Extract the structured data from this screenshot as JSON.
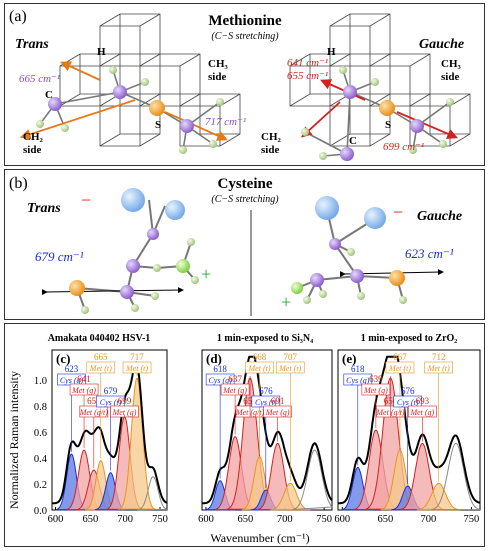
{
  "panel_a": {
    "label": "(a)",
    "title": "Methionine",
    "subtitle": "(C−S stretching)",
    "trans": {
      "label": "Trans",
      "freq": "665 cm⁻¹",
      "freq2": "717 cm⁻¹",
      "atom_h": "H",
      "atom_c": "C",
      "atom_s": "S",
      "ch3": "CH₃",
      "ch3_side": "side",
      "ch2": "CH₂",
      "ch2_side": "side"
    },
    "gauche": {
      "label": "Gauche",
      "freq1": "641 cm⁻¹",
      "freq2": "655 cm⁻¹",
      "freq3": "699 cm⁻¹",
      "atom_h": "H",
      "atom_c": "C",
      "atom_s": "S",
      "ch3": "CH₃",
      "ch3_side": "side",
      "ch2": "CH₂",
      "ch2_side": "side"
    }
  },
  "panel_b": {
    "label": "(b)",
    "title": "Cysteine",
    "subtitle": "(C−S stretching)",
    "trans": {
      "label": "Trans",
      "freq": "679 cm⁻¹",
      "minus": "−",
      "plus": "+"
    },
    "gauche": {
      "label": "Gauche",
      "freq": "623 cm⁻¹",
      "minus": "−",
      "plus": "+"
    }
  },
  "panel_c": {
    "ylabel": "Normalized Raman intensity",
    "xlabel": "Wavenumber (cm⁻¹)",
    "yticks": [
      "0.0",
      "0.2",
      "0.4",
      "0.6",
      "0.8",
      "1.0"
    ],
    "colors": {
      "red": "#d81f1f",
      "blue": "#1a2fd6",
      "orange": "#e8961e",
      "black": "#000000",
      "gray": "#8a8a8a"
    }
  },
  "chart_data": [
    {
      "type": "line",
      "panel_label": "(c)",
      "title": "Amakata 040402 HSV-1",
      "xlabel": "Wavenumber (cm⁻¹)",
      "ylabel": "Normalized Raman intensity",
      "xlim": [
        595,
        760
      ],
      "ylim": [
        0,
        1.2
      ],
      "xticks": [
        600,
        650,
        700,
        750
      ],
      "peaks": [
        {
          "position": 623,
          "amplitude": 0.42,
          "width": 7,
          "assignment": "Cys (g)",
          "color": "blue"
        },
        {
          "position": 641,
          "amplitude": 0.45,
          "width": 8,
          "assignment": "Met (g)",
          "color": "red"
        },
        {
          "position": 655,
          "amplitude": 0.3,
          "width": 8,
          "assignment": "Met (g/t)",
          "color": "red"
        },
        {
          "position": 665,
          "amplitude": 0.37,
          "width": 7,
          "assignment": "Met (t)",
          "color": "orange"
        },
        {
          "position": 679,
          "amplitude": 0.28,
          "width": 7,
          "assignment": "Cys (t)",
          "color": "blue"
        },
        {
          "position": 699,
          "amplitude": 0.7,
          "width": 8,
          "assignment": "Met (g)",
          "color": "red"
        },
        {
          "position": 717,
          "amplitude": 0.99,
          "width": 8,
          "assignment": "Met (t)",
          "color": "orange"
        },
        {
          "position": 740,
          "amplitude": 0.25,
          "width": 7,
          "assignment": "",
          "color": "gray"
        }
      ]
    },
    {
      "type": "line",
      "panel_label": "(d)",
      "title": "1 min-exposed to Si₃N₄",
      "xlabel": "Wavenumber (cm⁻¹)",
      "xlim": [
        595,
        760
      ],
      "ylim": [
        0,
        1.2
      ],
      "xticks": [
        600,
        650,
        700,
        750
      ],
      "peaks": [
        {
          "position": 618,
          "amplitude": 0.22,
          "width": 6,
          "assignment": "Cys (g)",
          "color": "blue"
        },
        {
          "position": 637,
          "amplitude": 0.55,
          "width": 8,
          "assignment": "Met (g)",
          "color": "red"
        },
        {
          "position": 656,
          "amplitude": 0.99,
          "width": 9,
          "assignment": "Met (g/t)",
          "color": "red"
        },
        {
          "position": 668,
          "amplitude": 0.4,
          "width": 7,
          "assignment": "Met (t)",
          "color": "orange"
        },
        {
          "position": 676,
          "amplitude": 0.15,
          "width": 6,
          "assignment": "Cys (t)",
          "color": "blue"
        },
        {
          "position": 691,
          "amplitude": 0.5,
          "width": 8,
          "assignment": "Met (g)",
          "color": "red"
        },
        {
          "position": 707,
          "amplitude": 0.2,
          "width": 8,
          "assignment": "Met (t)",
          "color": "orange"
        },
        {
          "position": 738,
          "amplitude": 0.45,
          "width": 9,
          "assignment": "",
          "color": "gray"
        }
      ]
    },
    {
      "type": "line",
      "panel_label": "(e)",
      "title": "1 min-exposed to ZrO₂",
      "xlabel": "Wavenumber (cm⁻¹)",
      "xlim": [
        595,
        760
      ],
      "ylim": [
        0,
        1.2
      ],
      "xticks": [
        600,
        650,
        700,
        750
      ],
      "peaks": [
        {
          "position": 618,
          "amplitude": 0.32,
          "width": 6,
          "assignment": "Cys (g)",
          "color": "blue"
        },
        {
          "position": 639,
          "amplitude": 0.6,
          "width": 8,
          "assignment": "Met (g)",
          "color": "red"
        },
        {
          "position": 656,
          "amplitude": 0.99,
          "width": 9,
          "assignment": "Met (g/t)",
          "color": "red"
        },
        {
          "position": 667,
          "amplitude": 0.45,
          "width": 7,
          "assignment": "Met (t)",
          "color": "orange"
        },
        {
          "position": 676,
          "amplitude": 0.18,
          "width": 6,
          "assignment": "Cys (t)",
          "color": "blue"
        },
        {
          "position": 693,
          "amplitude": 0.5,
          "width": 8,
          "assignment": "Met (g)",
          "color": "red"
        },
        {
          "position": 712,
          "amplitude": 0.2,
          "width": 8,
          "assignment": "Met (t)",
          "color": "orange"
        },
        {
          "position": 732,
          "amplitude": 0.5,
          "width": 9,
          "assignment": "",
          "color": "gray"
        }
      ]
    }
  ]
}
